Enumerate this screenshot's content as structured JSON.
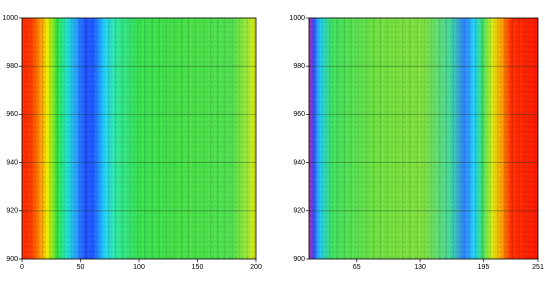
{
  "chart_data": [
    {
      "type": "heatmap",
      "xlim": [
        0,
        200
      ],
      "xticks": [
        0,
        50,
        100,
        150,
        200
      ],
      "ylim": [
        900,
        1000
      ],
      "yticks": [
        900,
        920,
        940,
        960,
        980,
        1000
      ],
      "grid": true
    },
    {
      "type": "heatmap",
      "xlim": [
        16,
        251
      ],
      "xticks": [
        65,
        130,
        195,
        251
      ],
      "ylim": [
        900,
        1000
      ],
      "yticks": [
        900,
        920,
        940,
        960,
        980,
        1000
      ],
      "grid": true
    }
  ]
}
